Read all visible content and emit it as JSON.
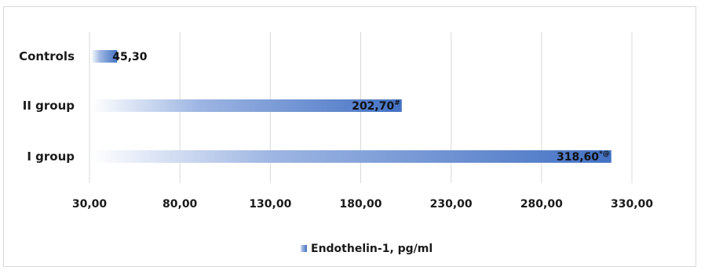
{
  "chart_data": {
    "type": "bar",
    "orientation": "horizontal",
    "title": "",
    "xlabel": "",
    "ylabel": "",
    "categories": [
      "I group",
      "II group",
      "Controls"
    ],
    "series": [
      {
        "name": "Endothelin-1, pg/ml",
        "values": [
          318.6,
          202.7,
          45.3
        ]
      }
    ],
    "data_labels": [
      {
        "text": "318,60",
        "sup": "*@"
      },
      {
        "text": "202,70",
        "sup": "#"
      },
      {
        "text": "45,30",
        "sup": ""
      }
    ],
    "xlim": [
      30,
      330
    ],
    "x_ticks": [
      "30,00",
      "80,00",
      "130,00",
      "180,00",
      "230,00",
      "280,00",
      "330,00"
    ],
    "x_tick_values": [
      30,
      80,
      130,
      180,
      230,
      280,
      330
    ],
    "grid": "vertical",
    "legend_position": "bottom",
    "colors": {
      "bar": "#4472c4",
      "bar_fade": "#ffffff",
      "grid": "#d9d9d9"
    }
  }
}
